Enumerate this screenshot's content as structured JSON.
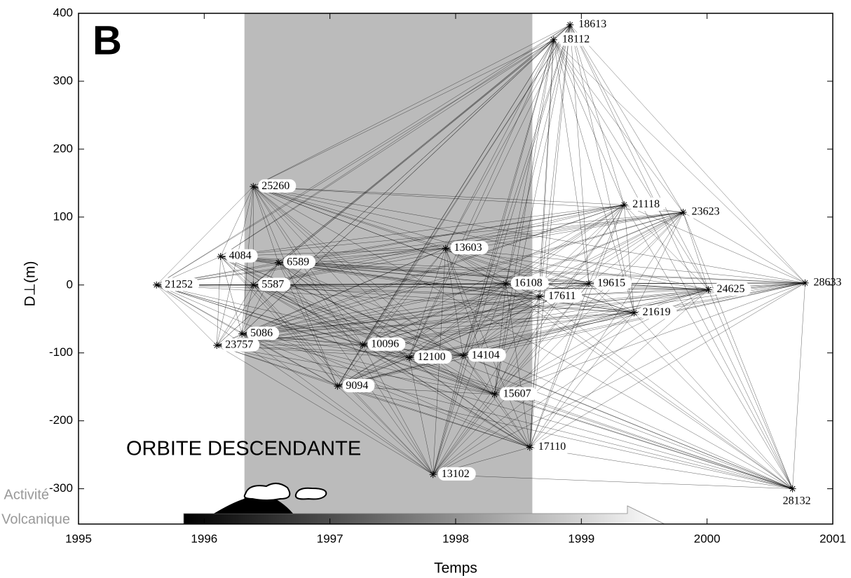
{
  "chart_data": {
    "type": "scatter",
    "panel_label": "B",
    "annotation": "ORBITE DESCENDANTE",
    "activity_label": [
      "Activité",
      "Volcanique"
    ],
    "xlabel": "Temps",
    "ylabel": "D⊥(m)",
    "xlim": [
      1995,
      2001
    ],
    "xticks": [
      1995,
      1996,
      1997,
      1998,
      1999,
      2000,
      2001
    ],
    "ylim": [
      -352,
      400
    ],
    "yticks": [
      -300,
      -200,
      -100,
      0,
      100,
      200,
      300,
      400
    ],
    "shaded_region": [
      1996.32,
      1998.61
    ],
    "color": "#000000",
    "points": [
      {
        "label": "18613",
        "x": 1998.91,
        "y": 383
      },
      {
        "label": "18112",
        "x": 1998.78,
        "y": 361
      },
      {
        "label": "25260",
        "x": 1996.39,
        "y": 145
      },
      {
        "label": "21118",
        "x": 1999.34,
        "y": 118
      },
      {
        "label": "23623",
        "x": 1999.81,
        "y": 107
      },
      {
        "label": "4084",
        "x": 1996.13,
        "y": 42
      },
      {
        "label": "6589",
        "x": 1996.59,
        "y": 33
      },
      {
        "label": "13603",
        "x": 1997.92,
        "y": 54
      },
      {
        "label": "21252",
        "x": 1995.62,
        "y": 0
      },
      {
        "label": "5587",
        "x": 1996.39,
        "y": 0
      },
      {
        "label": "16108",
        "x": 1998.4,
        "y": 2
      },
      {
        "label": "19615",
        "x": 1999.06,
        "y": 2
      },
      {
        "label": "28633",
        "x": 2000.78,
        "y": 3
      },
      {
        "label": "24625",
        "x": 2000.01,
        "y": -7
      },
      {
        "label": "17611",
        "x": 1998.67,
        "y": -17
      },
      {
        "label": "21619",
        "x": 1999.42,
        "y": -41
      },
      {
        "label": "5086",
        "x": 1996.3,
        "y": -72
      },
      {
        "label": "23757",
        "x": 1996.1,
        "y": -89
      },
      {
        "label": "10096",
        "x": 1997.26,
        "y": -88
      },
      {
        "label": "12100",
        "x": 1997.63,
        "y": -107
      },
      {
        "label": "14104",
        "x": 1998.06,
        "y": -104
      },
      {
        "label": "9094",
        "x": 1997.06,
        "y": -149
      },
      {
        "label": "15607",
        "x": 1998.31,
        "y": -161
      },
      {
        "label": "17110",
        "x": 1998.59,
        "y": -239
      },
      {
        "label": "13102",
        "x": 1997.82,
        "y": -279
      },
      {
        "label": "28132",
        "x": 2000.68,
        "y": -300
      }
    ]
  }
}
